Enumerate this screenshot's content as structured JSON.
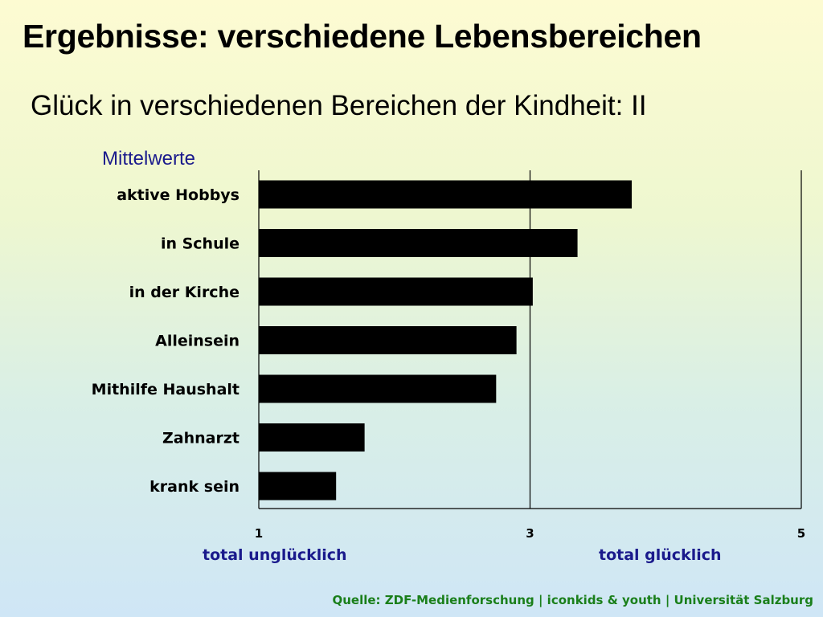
{
  "slide": {
    "title": "Ergebnisse: verschiedene Lebensbereichen",
    "subtitle": "Glück in verschiedenen Bereichen der Kindheit: II",
    "source": "Quelle: ZDF-Medienforschung | iconkids & youth | Universität Salzburg"
  },
  "colors": {
    "bar": "#000000",
    "axis_label": "#1a1a8c",
    "source": "#1a7f1a"
  },
  "chart_data": {
    "type": "bar",
    "orientation": "horizontal",
    "title": "",
    "ylabel": "Mittelwerte",
    "categories": [
      "aktive Hobbys",
      "in Schule",
      "in der Kirche",
      "Alleinsein",
      "Mithilfe Haushalt",
      "Zahnarzt",
      "krank sein"
    ],
    "values": [
      3.75,
      3.35,
      3.02,
      2.9,
      2.75,
      1.78,
      1.57
    ],
    "xlim": [
      1,
      5
    ],
    "xticks": [
      1,
      3,
      5
    ],
    "xtick_labels": [
      "1",
      "3",
      "5"
    ],
    "x_min_label": "total unglücklich",
    "x_max_label": "total glücklich",
    "grid": "vertical line at 3"
  }
}
